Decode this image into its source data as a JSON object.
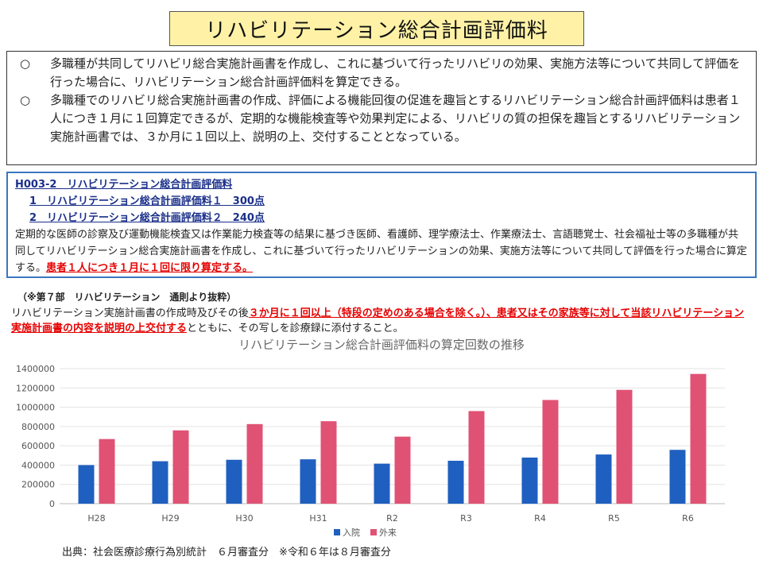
{
  "title": "リハビリテーション総合計画評価料",
  "summary": {
    "bullets": [
      {
        "mark": "○",
        "text": "多職種が共同してリハビリ総合実施計画書を作成し、これに基づいて行ったリハビリの効果、実施方法等について共同して評価を行った場合に、リハビリテーション総合計画評価料を算定できる。"
      },
      {
        "mark": "○",
        "text": "多職種でのリハビリ総合実施計画書の作成、評価による機能回復の促進を趣旨とするリハビリテーション総合計画評価料は患者１人につき１月に１回算定できるが、定期的な機能検査等や効果判定による、リハビリの質の担保を趣旨とするリハビリテーション実施計画書では、３か月に１回以上、説明の上、交付することとなっている。"
      }
    ]
  },
  "h003": {
    "heading": "H003-2　リハビリテーション総合計画評価料",
    "item1": "1　リハビリテーション総合計画評価料１　300点",
    "item2": "2　リハビリテーション総合計画評価料２　240点",
    "body": "定期的な医師の診察及び運動機能検査又は作業能力検査等の結果に基づき医師、看護師、理学療法士、作業療法士、言語聴覚士、社会福祉士等の多職種が共同してリハビリテーション総合実施計画書を作成し、これに基づいて行ったリハビリテーションの効果、実施方法等について共同して評価を行った場合に算定する。",
    "emphasis": "患者１人につき１月に１回に限り算定する。"
  },
  "note": {
    "heading": "（※第７部　リハビリテーション　通則より抜粋）",
    "text1": "リハビリテーション実施計画書の作成時及びその後",
    "emphasis": "３か月に１回以上（特段の定めのある場合を除く。）、患者又はその家族等に対して当該リハビリテーション実施計画書の内容を説明の上交付する",
    "text2": "とともに、その写しを診療録に添付すること。"
  },
  "chart_title": "リハビリテーション総合計画評価料の算定回数の推移",
  "chart_data": {
    "type": "bar",
    "title": "リハビリテーション総合計画評価料の算定回数の推移",
    "categories": [
      "H28",
      "H29",
      "H30",
      "H31",
      "R2",
      "R3",
      "R4",
      "R5",
      "R6"
    ],
    "series": [
      {
        "name": "入院",
        "color": "#1F5FBF",
        "values": [
          400000,
          440000,
          455000,
          460000,
          415000,
          445000,
          478000,
          510000,
          558000
        ]
      },
      {
        "name": "外来",
        "color": "#E05274",
        "values": [
          670000,
          760000,
          825000,
          855000,
          695000,
          960000,
          1075000,
          1180000,
          1345000
        ]
      }
    ],
    "ylim": [
      0,
      1400000
    ],
    "yticks": [
      0,
      200000,
      400000,
      600000,
      800000,
      1000000,
      1200000,
      1400000
    ],
    "grid": true,
    "legend": "bottom"
  },
  "source": "出典：社会医療診療行為別統計　６月審査分　※令和６年は８月審査分"
}
